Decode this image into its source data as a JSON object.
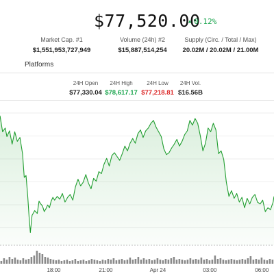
{
  "header": {
    "price": "$77,520.00",
    "change": "0.12%",
    "change_arrow": "▲",
    "stats": [
      {
        "label": "Market Cap. #1",
        "value": "$1,551,953,727,949"
      },
      {
        "label": "Volume (24h) #2",
        "value": "$15,887,514,254"
      },
      {
        "label": "Supply (Circ. / Total / Max)",
        "value": "20.02M / 20.02M / 21.00M"
      }
    ]
  },
  "tabs": {
    "partial": "s",
    "platforms": "Platforms"
  },
  "ohlc": [
    {
      "label": "24H Open",
      "value": "$77,330.04",
      "color": "#222222"
    },
    {
      "label": "24H High",
      "value": "$78,617.17",
      "color": "#16a34a"
    },
    {
      "label": "24H Low",
      "value": "$77,218.81",
      "color": "#dc2626"
    },
    {
      "label": "24H Vol.",
      "value": "$16.56B",
      "color": "#222222"
    }
  ],
  "colors": {
    "line": "#1f9d2e",
    "area": "#1f9d2e",
    "volume": "#8a8a8a",
    "up": "#16a34a",
    "down": "#dc2626"
  },
  "chart_data": {
    "type": "line",
    "title": "",
    "xlabel": "",
    "ylabel": "",
    "x_ticks": [
      "18:00",
      "21:00",
      "Apr 24",
      "03:00",
      "06:00"
    ],
    "x_tick_hours": [
      0,
      3,
      6,
      9,
      12
    ],
    "x_range_hours": [
      -3.1,
      12.7
    ],
    "ylim": [
      77200,
      78650
    ],
    "gridlines": true,
    "series": [
      {
        "values_hours": [
          -3.1,
          -2.95,
          -2.8,
          -2.7,
          -2.55,
          -2.4,
          -2.25,
          -2.1,
          -1.95,
          -1.8,
          -1.7,
          -1.6,
          -1.5,
          -1.42,
          -1.35,
          -1.25,
          -1.1,
          -0.95,
          -0.85,
          -0.75,
          -0.65,
          -0.55,
          -0.45,
          -0.35,
          -0.25,
          -0.15,
          -0.05,
          0.05,
          0.2,
          0.35,
          0.5,
          0.65,
          0.8,
          0.95,
          1.1,
          1.25,
          1.4,
          1.55,
          1.7,
          1.85,
          2.0,
          2.15,
          2.3,
          2.45,
          2.6,
          2.75,
          2.9,
          3.05,
          3.2,
          3.35,
          3.5,
          3.65,
          3.8,
          3.95,
          4.1,
          4.25,
          4.4,
          4.55,
          4.7,
          4.85,
          5.0,
          5.15,
          5.3,
          5.45,
          5.6,
          5.75,
          5.9,
          6.05,
          6.2,
          6.35,
          6.5,
          6.65,
          6.8,
          6.95,
          7.1,
          7.25,
          7.4,
          7.55,
          7.7,
          7.85,
          8.0,
          8.15,
          8.3,
          8.45,
          8.6,
          8.75,
          8.9,
          9.05,
          9.2,
          9.35,
          9.5,
          9.65,
          9.8,
          9.95,
          10.1,
          10.25,
          10.4,
          10.55,
          10.7,
          10.85,
          11.0,
          11.15,
          11.3,
          11.45,
          11.6,
          11.75,
          11.9,
          12.05,
          12.2,
          12.35,
          12.5,
          12.65,
          12.7
        ],
        "values": [
          78550,
          78380,
          78420,
          78330,
          78390,
          78250,
          78380,
          78280,
          78320,
          78150,
          77900,
          77920,
          77700,
          77480,
          77320,
          77500,
          77550,
          77520,
          77650,
          77620,
          77600,
          77540,
          77570,
          77610,
          77580,
          77650,
          77690,
          77660,
          77700,
          77670,
          77730,
          77640,
          77690,
          77720,
          77660,
          77800,
          77880,
          77810,
          77850,
          77930,
          77840,
          77780,
          77890,
          77860,
          77960,
          77940,
          78040,
          78100,
          78020,
          78130,
          78160,
          78120,
          78080,
          78150,
          78230,
          78180,
          78260,
          78310,
          78260,
          78360,
          78400,
          78320,
          78390,
          78420,
          78470,
          78500,
          78430,
          78380,
          78330,
          78200,
          78140,
          78160,
          78210,
          78250,
          78300,
          78230,
          78280,
          78350,
          78390,
          78500,
          78450,
          78520,
          78470,
          78340,
          78180,
          78260,
          78420,
          78380,
          78470,
          78400,
          78150,
          78180,
          78090,
          77850,
          77700,
          77760,
          77680,
          77730,
          77640,
          77690,
          77580,
          77680,
          77620,
          77690,
          77720,
          77640,
          77620,
          77660,
          77540,
          77580,
          77560,
          77640,
          77700
        ]
      }
    ],
    "volume": {
      "note": "relative volume bars along bottom",
      "values": [
        0.2,
        0.4,
        0.3,
        0.5,
        0.35,
        0.45,
        0.3,
        0.25,
        0.4,
        0.3,
        0.35,
        0.5,
        0.6,
        0.95,
        0.8,
        0.7,
        0.5,
        0.45,
        0.35,
        0.3,
        0.25,
        0.3,
        0.2,
        0.25,
        0.3,
        0.2,
        0.25,
        0.35,
        0.2,
        0.25,
        0.3,
        0.2,
        0.25,
        0.35,
        0.3,
        0.25,
        0.2,
        0.3,
        0.25,
        0.35,
        0.3,
        0.4,
        0.25,
        0.3,
        0.35,
        0.25,
        0.3,
        0.45,
        0.3,
        0.35,
        0.5,
        0.3,
        0.4,
        0.3,
        0.35,
        0.25,
        0.3,
        0.4,
        0.3,
        0.25,
        0.35,
        0.3,
        0.4,
        0.5,
        0.3,
        0.35,
        0.3,
        0.25,
        0.3,
        0.4,
        0.3,
        0.35,
        0.3,
        0.45,
        0.3,
        0.35,
        0.25,
        0.3,
        0.6,
        0.35,
        0.4,
        0.3,
        0.25,
        0.3,
        0.35,
        0.3,
        0.25,
        0.3,
        0.35,
        0.3,
        0.4,
        0.55,
        0.3,
        0.35,
        0.3,
        0.45,
        0.3,
        0.25,
        0.35,
        0.3
      ]
    }
  }
}
